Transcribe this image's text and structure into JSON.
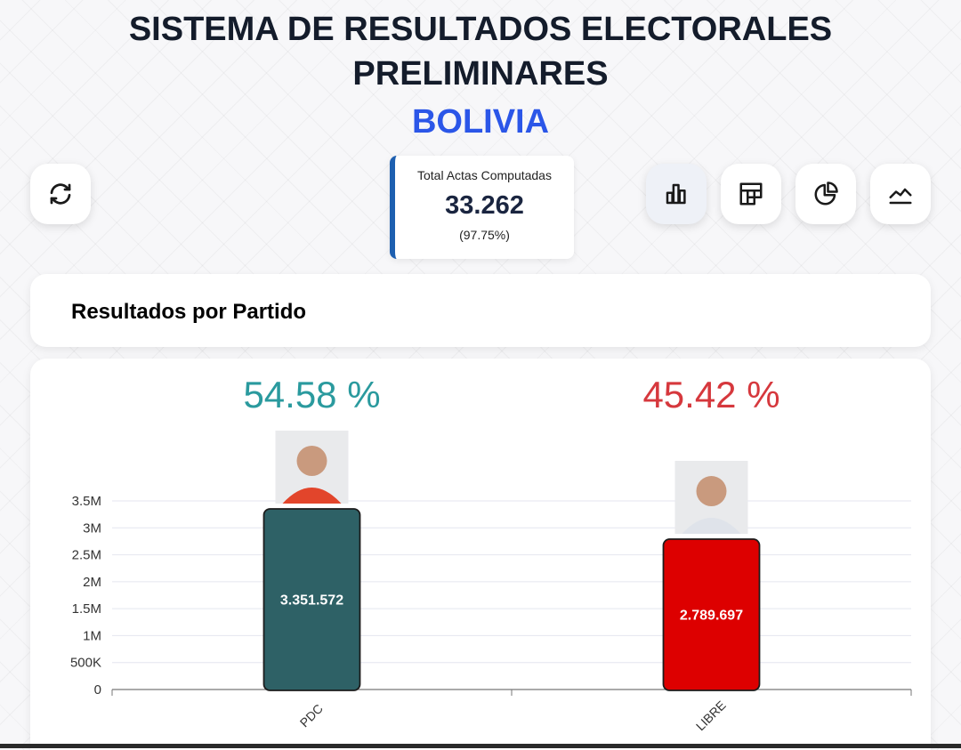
{
  "header": {
    "title_line1": "SISTEMA DE RESULTADOS ELECTORALES",
    "title_line2": "PRELIMINARES",
    "country": "BOLIVIA"
  },
  "toolbar": {
    "refresh_icon": "refresh-icon",
    "views": [
      {
        "icon": "bar-chart-icon",
        "active": true
      },
      {
        "icon": "treemap-icon",
        "active": false
      },
      {
        "icon": "pie-chart-icon",
        "active": false
      },
      {
        "icon": "line-chart-icon",
        "active": false
      }
    ]
  },
  "stats": {
    "label": "Total Actas Computadas",
    "value": "33.262",
    "percent": "(97.75%)"
  },
  "panel": {
    "title": "Resultados por Partido"
  },
  "chart_data": {
    "type": "bar",
    "categories": [
      "PDC",
      "LIBRE"
    ],
    "values": [
      3351572,
      2789697
    ],
    "data_labels": [
      "3.351.572",
      "2.789.697"
    ],
    "percent_labels": [
      "54.58 %",
      "45.42 %"
    ],
    "colors": [
      "#2e6166",
      "#dd0000"
    ],
    "percent_colors": [
      "#2a9a9e",
      "#d6383d"
    ],
    "ylim": [
      0,
      3500000
    ],
    "yticks": [
      0,
      500000,
      1000000,
      1500000,
      2000000,
      2500000,
      3000000,
      3500000
    ],
    "ytick_labels": [
      "0",
      "500K",
      "1M",
      "1.5M",
      "2M",
      "2.5M",
      "3M",
      "3.5M"
    ],
    "grid": true,
    "xlabel": "",
    "ylabel": ""
  }
}
